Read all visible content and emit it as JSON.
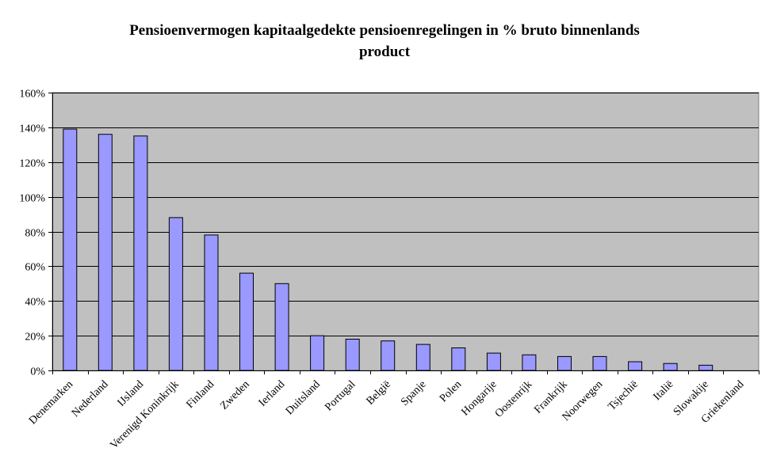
{
  "chart_data": {
    "type": "bar",
    "title_line1": "Pensioenvermogen kapitaalgedekte pensioenregelingen in % bruto binnenlands",
    "title_line2": "product",
    "xlabel": "",
    "ylabel": "",
    "categories": [
      "Denemarken",
      "Nederland",
      "IJsland",
      "Verenigd Koninkrijk",
      "Finland",
      "Zweden",
      "Ierland",
      "Duitsland",
      "Portugal",
      "België",
      "Spanje",
      "Polen",
      "Hongarije",
      "Oostenrijk",
      "Frankrijk",
      "Noorwegen",
      "Tsjechië",
      "Italië",
      "Slowakije",
      "Griekenland"
    ],
    "values": [
      139,
      136,
      135,
      88,
      78,
      56,
      50,
      20,
      18,
      17,
      15,
      13,
      10,
      9,
      8,
      8,
      5,
      4,
      3,
      0
    ],
    "ylim": [
      0,
      160
    ],
    "yticks": [
      0,
      20,
      40,
      60,
      80,
      100,
      120,
      140,
      160
    ],
    "ytick_labels": [
      "0%",
      "20%",
      "40%",
      "60%",
      "80%",
      "100%",
      "120%",
      "140%",
      "160%"
    ],
    "grid": true,
    "legend": "none",
    "colors": {
      "plot_background": "#c0c0c0",
      "bar_fill": "#9999ff",
      "bar_stroke": "#000000",
      "gridline": "#000000"
    }
  }
}
